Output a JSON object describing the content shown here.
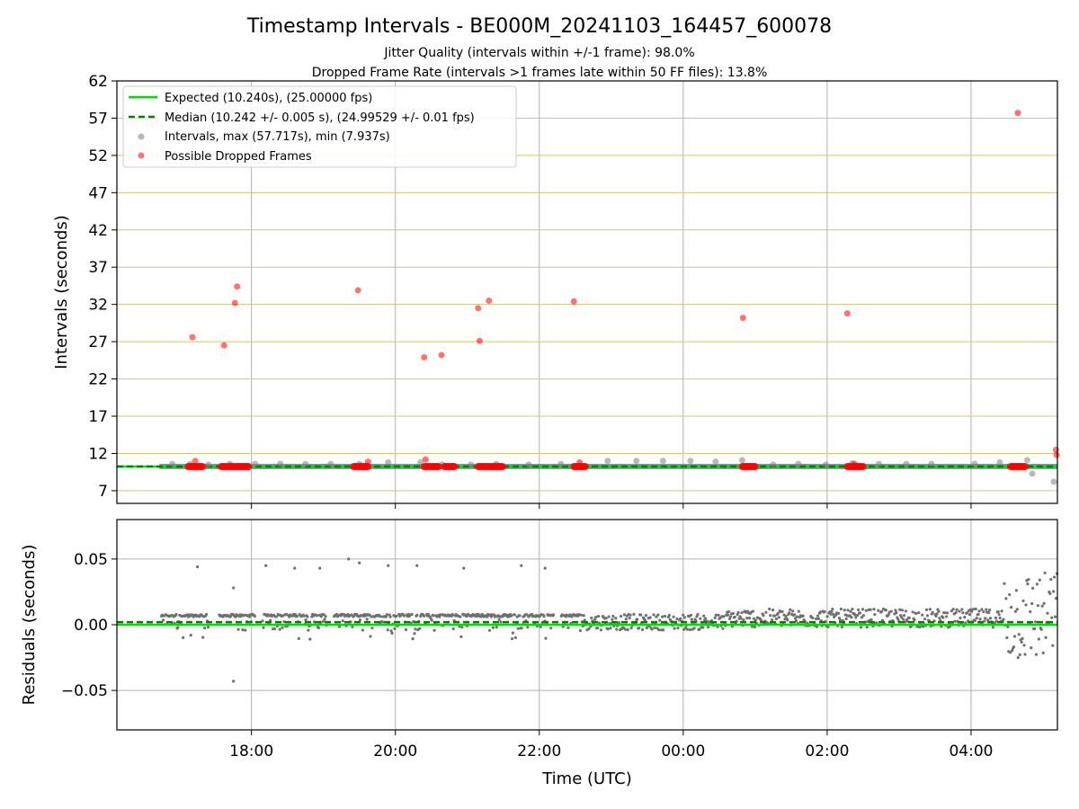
{
  "title": "Timestamp Intervals - BE000M_20241103_164457_600078",
  "subtitle_1": "Jitter Quality (intervals within +/-1 frame): 98.0%",
  "subtitle_2": "Dropped Frame Rate (intervals >1 frames late within 50 FF files): 13.8%",
  "colors": {
    "expected": "#00e000",
    "median": "#008000",
    "intervals": "#808080",
    "dropped": "#ff0000",
    "hgrid_top": "#d6c27a",
    "grid": "#b0b0b0",
    "band": "#404040"
  },
  "chart_data": [
    {
      "type": "scatter",
      "panel": "intervals",
      "ylabel": "Intervals (seconds)",
      "ylim": [
        5.3,
        62
      ],
      "yticks": [
        7,
        12,
        17,
        22,
        27,
        32,
        37,
        42,
        47,
        52,
        57,
        62
      ],
      "xlim_hours": [
        16.13,
        29.2
      ],
      "grid": true,
      "legend_position": "upper-left",
      "legend": {
        "expected": "Expected (10.240s), (25.00000 fps)",
        "median": "Median (10.242 +/- 0.005 s), (24.99529 +/- 0.01 fps)",
        "intervals": "Intervals, max (57.717s), min (7.937s)",
        "dropped": "Possible Dropped Frames"
      },
      "expected_value": 10.24,
      "median_value": 10.242,
      "interval_points_hours": [
        16.9,
        17.15,
        17.4,
        17.7,
        18.05,
        18.4,
        18.75,
        19.1,
        19.5,
        19.9,
        20.35,
        20.65,
        21.05,
        21.4,
        21.85,
        22.3,
        22.95,
        23.35,
        23.72,
        24.1,
        24.45,
        24.82,
        25.25,
        25.6,
        25.98,
        26.35,
        26.72,
        27.1,
        27.45,
        28.05,
        28.4,
        28.78,
        28.85,
        29.15
      ],
      "interval_points_values": [
        10.6,
        10.6,
        10.5,
        10.6,
        10.6,
        10.6,
        10.6,
        10.6,
        10.6,
        10.8,
        10.8,
        10.5,
        10.5,
        10.6,
        10.5,
        10.6,
        11.0,
        11.0,
        11.0,
        11.0,
        10.9,
        11.1,
        10.5,
        10.6,
        10.5,
        10.7,
        10.6,
        10.6,
        10.6,
        10.6,
        10.8,
        11.1,
        9.3,
        8.2
      ],
      "dropped_points_hours": [
        17.18,
        17.22,
        17.62,
        17.77,
        17.8,
        19.48,
        19.62,
        20.4,
        20.42,
        20.64,
        21.15,
        21.17,
        21.3,
        22.48,
        22.56,
        24.83,
        26.28,
        26.38,
        28.65,
        29.18,
        29.19
      ],
      "dropped_points_values": [
        27.6,
        11.0,
        26.5,
        32.2,
        34.4,
        33.9,
        10.9,
        24.9,
        11.2,
        25.2,
        31.5,
        27.1,
        32.5,
        32.4,
        10.8,
        30.2,
        30.8,
        10.6,
        57.7,
        12.5,
        11.8
      ],
      "dropped_runs_hours": [
        [
          17.12,
          17.32
        ],
        [
          17.58,
          17.96
        ],
        [
          19.42,
          19.62
        ],
        [
          20.4,
          20.6
        ],
        [
          20.68,
          20.82
        ],
        [
          21.15,
          21.5
        ],
        [
          22.48,
          22.65
        ],
        [
          24.82,
          25.0
        ],
        [
          26.28,
          26.5
        ],
        [
          28.55,
          28.75
        ]
      ]
    },
    {
      "type": "scatter",
      "panel": "residuals",
      "xlabel": "Time (UTC)",
      "ylabel": "Residuals (seconds)",
      "ylim": [
        -0.08,
        0.08
      ],
      "yticks": [
        -0.05,
        0.0,
        0.05
      ],
      "ytick_labels": [
        "−0.05",
        "0.00",
        "0.05"
      ],
      "xticks_hours": [
        18,
        20,
        22,
        24,
        26,
        28
      ],
      "xtick_labels": [
        "18:00",
        "20:00",
        "22:00",
        "00:00",
        "02:00",
        "04:00"
      ],
      "expected_residual": 0.0,
      "median_residual": 0.002,
      "outliers_hours": [
        17.25,
        17.75,
        17.75,
        18.2,
        18.6,
        18.95,
        19.35,
        19.5,
        19.9,
        20.3,
        20.95,
        21.75,
        22.08
      ],
      "outliers_values": [
        0.044,
        0.028,
        -0.043,
        0.045,
        0.043,
        0.043,
        0.05,
        0.047,
        0.045,
        0.045,
        0.043,
        0.045,
        0.043
      ]
    }
  ]
}
